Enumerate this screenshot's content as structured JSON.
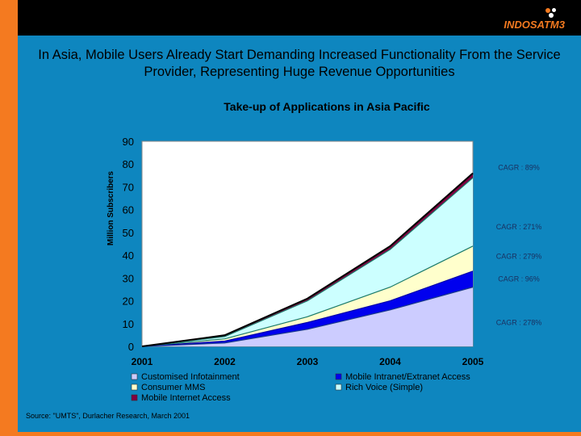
{
  "brand": {
    "logo_text": "INDOSATM3",
    "accent": "#f47a20"
  },
  "headline": "In Asia, Mobile Users Already Start Demanding Increased Functionality From the Service Provider, Representing Huge Revenue Opportunities",
  "source": "Source: \"UMTS\", Durlacher Research, March 2001",
  "chart_data": {
    "type": "area",
    "stacked": true,
    "title": "Take-up of Applications in Asia Pacific",
    "xlabel": "",
    "ylabel": "Million Subscribers",
    "categories": [
      "2001",
      "2002",
      "2003",
      "2004",
      "2005"
    ],
    "ylim": [
      0,
      90
    ],
    "yticks": [
      0,
      10,
      20,
      30,
      40,
      50,
      60,
      70,
      80,
      90
    ],
    "series": [
      {
        "name": "Customised Infotainment",
        "color": "#ccccff",
        "values": [
          0,
          1.5,
          7.5,
          16,
          26
        ]
      },
      {
        "name": "Mobile Intranet/Extranet Access",
        "color": "#0000ee",
        "values": [
          0,
          0.8,
          3,
          4,
          7
        ]
      },
      {
        "name": "Consumer MMS",
        "color": "#ffffcc",
        "values": [
          0,
          1,
          2.5,
          6,
          11
        ]
      },
      {
        "name": "Rich Voice (Simple)",
        "color": "#ccffff",
        "values": [
          0,
          1,
          7,
          16.5,
          30
        ]
      },
      {
        "name": "Mobile Internet Access",
        "color": "#800040",
        "values": [
          0,
          0.6,
          1,
          1.5,
          2
        ]
      }
    ],
    "annotations": [
      {
        "text": "CAGR : 89%",
        "y": 78.5
      },
      {
        "text": "CAGR : 271%",
        "y": 52.5
      },
      {
        "text": "CAGR : 279%",
        "y": 39.5
      },
      {
        "text": "CAGR : 96%",
        "y": 29.5
      },
      {
        "text": "CAGR : 278%",
        "y": 10.5
      }
    ],
    "legend": {
      "position": "bottom",
      "left": [
        "Customised Infotainment",
        "Consumer MMS",
        "Mobile Internet Access"
      ],
      "right": [
        "Mobile Intranet/Extranet Access",
        "Rich Voice (Simple)"
      ]
    }
  }
}
